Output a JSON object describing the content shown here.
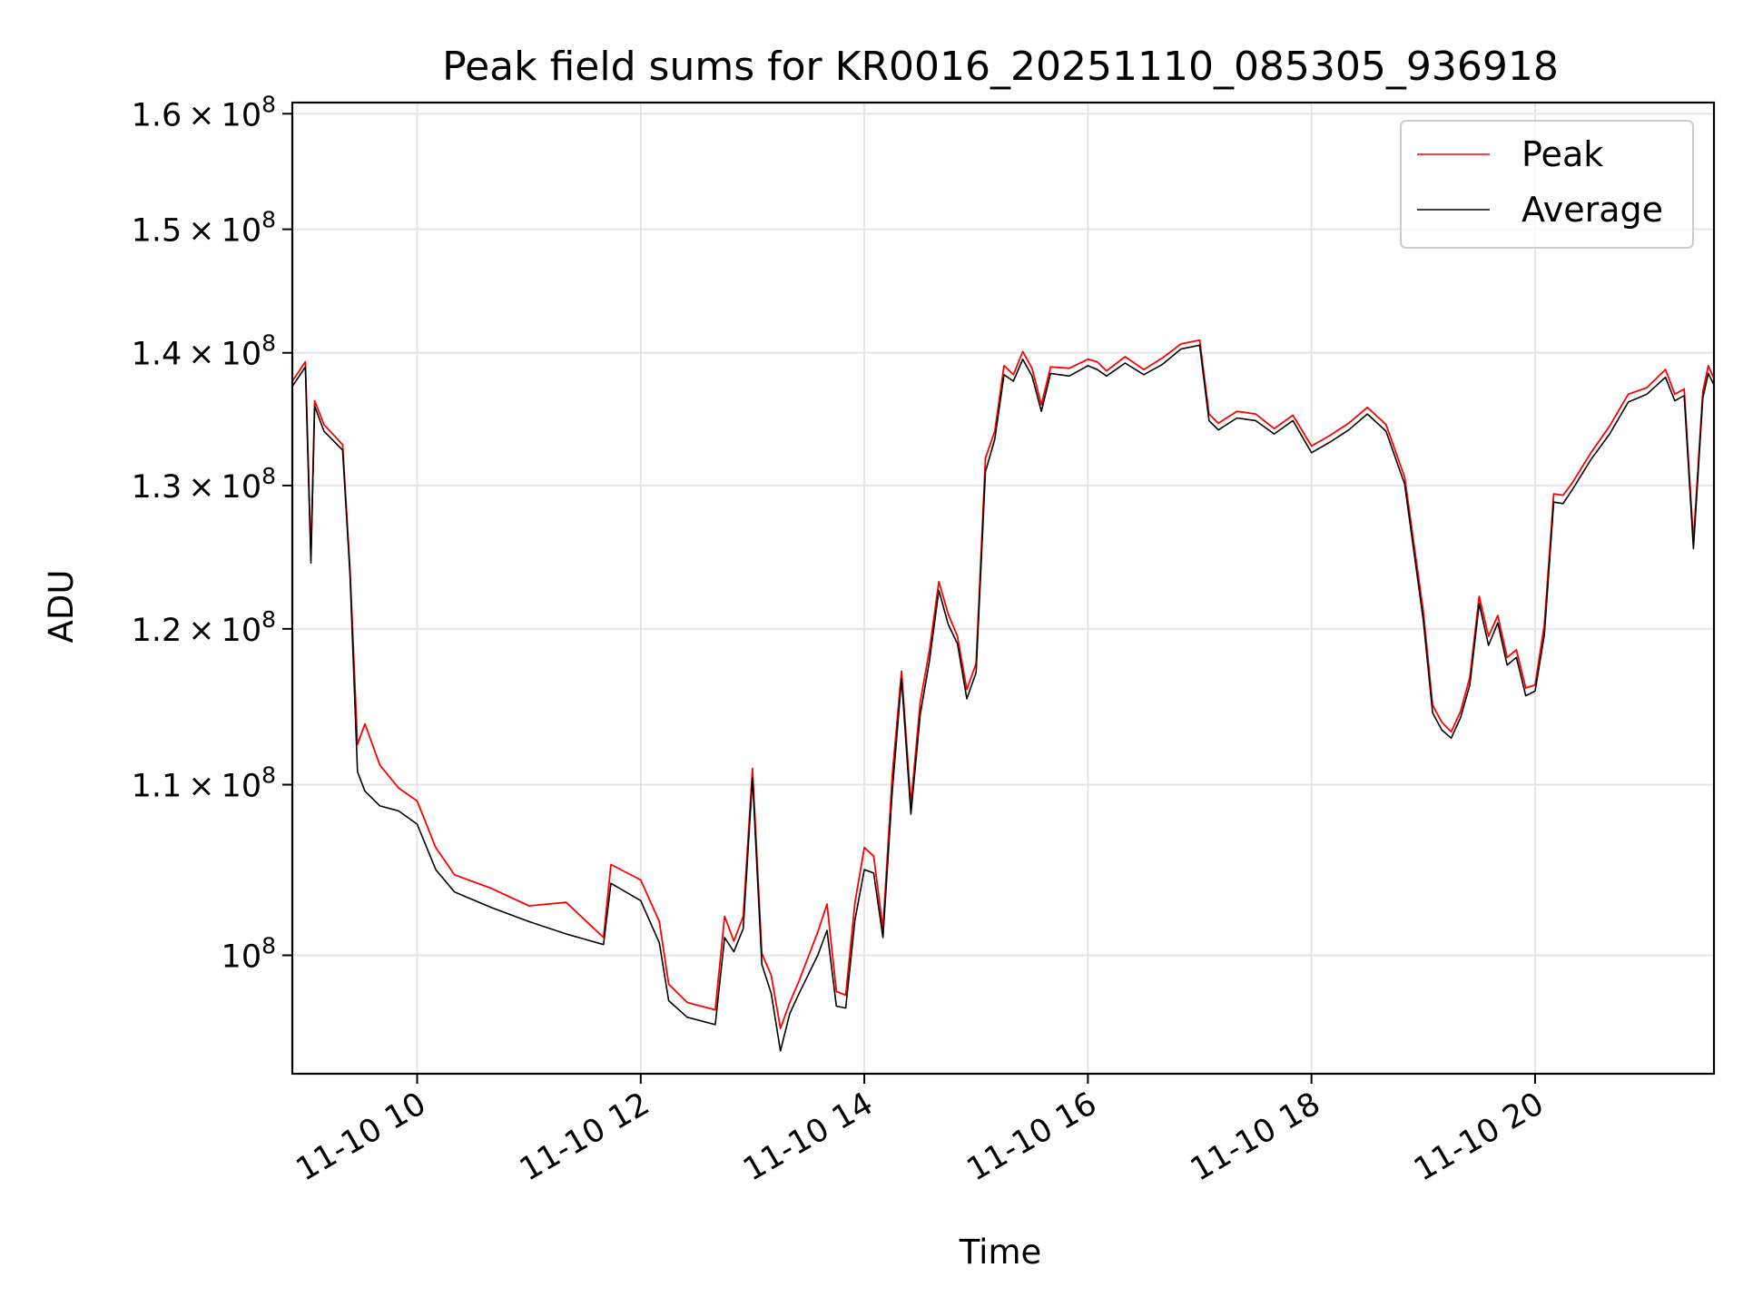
{
  "chart_data": {
    "type": "line",
    "title": "Peak field sums for KR0016_20251110_085305_936918",
    "xlabel": "Time",
    "ylabel": "ADU",
    "y_scale": "log",
    "grid": true,
    "legend_position": "top-right",
    "xlim": [
      "2025-11-10 08:53",
      "2025-11-10 21:36"
    ],
    "ylim": [
      93600000,
      161000000
    ],
    "x_ticks": [
      {
        "value": "2025-11-10 10:00",
        "label": "11-10 10"
      },
      {
        "value": "2025-11-10 12:00",
        "label": "11-10 12"
      },
      {
        "value": "2025-11-10 14:00",
        "label": "11-10 14"
      },
      {
        "value": "2025-11-10 16:00",
        "label": "11-10 16"
      },
      {
        "value": "2025-11-10 18:00",
        "label": "11-10 18"
      },
      {
        "value": "2025-11-10 20:00",
        "label": "11-10 20"
      }
    ],
    "y_ticks": [
      {
        "value": 100000000,
        "mantissa": "",
        "exponent": "8"
      },
      {
        "value": 110000000,
        "mantissa": "1.1",
        "exponent": "8"
      },
      {
        "value": 120000000,
        "mantissa": "1.2",
        "exponent": "8"
      },
      {
        "value": 130000000,
        "mantissa": "1.3",
        "exponent": "8"
      },
      {
        "value": 140000000,
        "mantissa": "1.4",
        "exponent": "8"
      },
      {
        "value": 150000000,
        "mantissa": "1.5",
        "exponent": "8"
      },
      {
        "value": 160000000,
        "mantissa": "1.6",
        "exponent": "8"
      }
    ],
    "x": [
      "2025-11-10 08:53",
      "2025-11-10 09:00",
      "2025-11-10 09:03",
      "2025-11-10 09:05",
      "2025-11-10 09:10",
      "2025-11-10 09:20",
      "2025-11-10 09:24",
      "2025-11-10 09:28",
      "2025-11-10 09:32",
      "2025-11-10 09:40",
      "2025-11-10 09:50",
      "2025-11-10 10:00",
      "2025-11-10 10:10",
      "2025-11-10 10:20",
      "2025-11-10 10:40",
      "2025-11-10 11:00",
      "2025-11-10 11:20",
      "2025-11-10 11:40",
      "2025-11-10 11:44",
      "2025-11-10 12:00",
      "2025-11-10 12:10",
      "2025-11-10 12:15",
      "2025-11-10 12:25",
      "2025-11-10 12:40",
      "2025-11-10 12:45",
      "2025-11-10 12:50",
      "2025-11-10 12:55",
      "2025-11-10 13:00",
      "2025-11-10 13:05",
      "2025-11-10 13:10",
      "2025-11-10 13:15",
      "2025-11-10 13:20",
      "2025-11-10 13:25",
      "2025-11-10 13:35",
      "2025-11-10 13:40",
      "2025-11-10 13:45",
      "2025-11-10 13:50",
      "2025-11-10 13:55",
      "2025-11-10 14:00",
      "2025-11-10 14:05",
      "2025-11-10 14:10",
      "2025-11-10 14:15",
      "2025-11-10 14:20",
      "2025-11-10 14:25",
      "2025-11-10 14:30",
      "2025-11-10 14:35",
      "2025-11-10 14:40",
      "2025-11-10 14:45",
      "2025-11-10 14:50",
      "2025-11-10 14:55",
      "2025-11-10 15:00",
      "2025-11-10 15:05",
      "2025-11-10 15:10",
      "2025-11-10 15:15",
      "2025-11-10 15:20",
      "2025-11-10 15:25",
      "2025-11-10 15:30",
      "2025-11-10 15:35",
      "2025-11-10 15:40",
      "2025-11-10 15:50",
      "2025-11-10 16:00",
      "2025-11-10 16:05",
      "2025-11-10 16:10",
      "2025-11-10 16:20",
      "2025-11-10 16:30",
      "2025-11-10 16:40",
      "2025-11-10 16:50",
      "2025-11-10 17:00",
      "2025-11-10 17:05",
      "2025-11-10 17:10",
      "2025-11-10 17:20",
      "2025-11-10 17:30",
      "2025-11-10 17:40",
      "2025-11-10 17:50",
      "2025-11-10 18:00",
      "2025-11-10 18:10",
      "2025-11-10 18:20",
      "2025-11-10 18:30",
      "2025-11-10 18:40",
      "2025-11-10 18:50",
      "2025-11-10 19:00",
      "2025-11-10 19:05",
      "2025-11-10 19:10",
      "2025-11-10 19:15",
      "2025-11-10 19:20",
      "2025-11-10 19:25",
      "2025-11-10 19:30",
      "2025-11-10 19:35",
      "2025-11-10 19:40",
      "2025-11-10 19:45",
      "2025-11-10 19:50",
      "2025-11-10 19:55",
      "2025-11-10 20:00",
      "2025-11-10 20:05",
      "2025-11-10 20:10",
      "2025-11-10 20:15",
      "2025-11-10 20:20",
      "2025-11-10 20:30",
      "2025-11-10 20:40",
      "2025-11-10 20:50",
      "2025-11-10 21:00",
      "2025-11-10 21:10",
      "2025-11-10 21:15",
      "2025-11-10 21:20",
      "2025-11-10 21:25",
      "2025-11-10 21:30",
      "2025-11-10 21:33",
      "2025-11-10 21:36"
    ],
    "series": [
      {
        "name": "Peak",
        "color": "#ff0000",
        "values": [
          137800000,
          139300000,
          125000000,
          136300000,
          134500000,
          133000000,
          124000000,
          112500000,
          113800000,
          111200000,
          109800000,
          109000000,
          106200000,
          104600000,
          103800000,
          102800000,
          103000000,
          101000000,
          105200000,
          104300000,
          101900000,
          98400000,
          97400000,
          97000000,
          102200000,
          100800000,
          102200000,
          111000000,
          100100000,
          98900000,
          96000000,
          97400000,
          98600000,
          101300000,
          102900000,
          98000000,
          97800000,
          103000000,
          106200000,
          105700000,
          101500000,
          110600000,
          117200000,
          108800000,
          115200000,
          118600000,
          123200000,
          121000000,
          119500000,
          116000000,
          117700000,
          132000000,
          134000000,
          139000000,
          138300000,
          140100000,
          138800000,
          136000000,
          138900000,
          138800000,
          139500000,
          139300000,
          138600000,
          139700000,
          138700000,
          139600000,
          140700000,
          141000000,
          135300000,
          134600000,
          135500000,
          135300000,
          134200000,
          135200000,
          132900000,
          133700000,
          134600000,
          135800000,
          134500000,
          130600000,
          121200000,
          115000000,
          113900000,
          113300000,
          114600000,
          116800000,
          122200000,
          119500000,
          120900000,
          118100000,
          118600000,
          116100000,
          116300000,
          120300000,
          129400000,
          129300000,
          130200000,
          132400000,
          134400000,
          136800000,
          137300000,
          138700000,
          136800000,
          137200000,
          126000000,
          137000000,
          139000000,
          138000000
        ]
      },
      {
        "name": "Average",
        "color": "#000000",
        "values": [
          137400000,
          138900000,
          124500000,
          135900000,
          134000000,
          132600000,
          123600000,
          110800000,
          109600000,
          108700000,
          108400000,
          107600000,
          104900000,
          103600000,
          102700000,
          101900000,
          101200000,
          100600000,
          104100000,
          103100000,
          100700000,
          97500000,
          96600000,
          96200000,
          101000000,
          100200000,
          101500000,
          110400000,
          99500000,
          97900000,
          94800000,
          96800000,
          97900000,
          100000000,
          101400000,
          97200000,
          97100000,
          102000000,
          104900000,
          104700000,
          101000000,
          109600000,
          116700000,
          108200000,
          114400000,
          117900000,
          122600000,
          120300000,
          119000000,
          115400000,
          117100000,
          131000000,
          133400000,
          138300000,
          137800000,
          139500000,
          138200000,
          135500000,
          138400000,
          138200000,
          139000000,
          138700000,
          138200000,
          139200000,
          138300000,
          139100000,
          140300000,
          140600000,
          134800000,
          134100000,
          135000000,
          134800000,
          133800000,
          134800000,
          132400000,
          133200000,
          134100000,
          135300000,
          134000000,
          130100000,
          120600000,
          114500000,
          113400000,
          112900000,
          114200000,
          116300000,
          121700000,
          118900000,
          120400000,
          117600000,
          118100000,
          115600000,
          115900000,
          119600000,
          128800000,
          128700000,
          129700000,
          131900000,
          133800000,
          136200000,
          136800000,
          138100000,
          136300000,
          136700000,
          125500000,
          136500000,
          138400000,
          137500000
        ]
      }
    ]
  }
}
